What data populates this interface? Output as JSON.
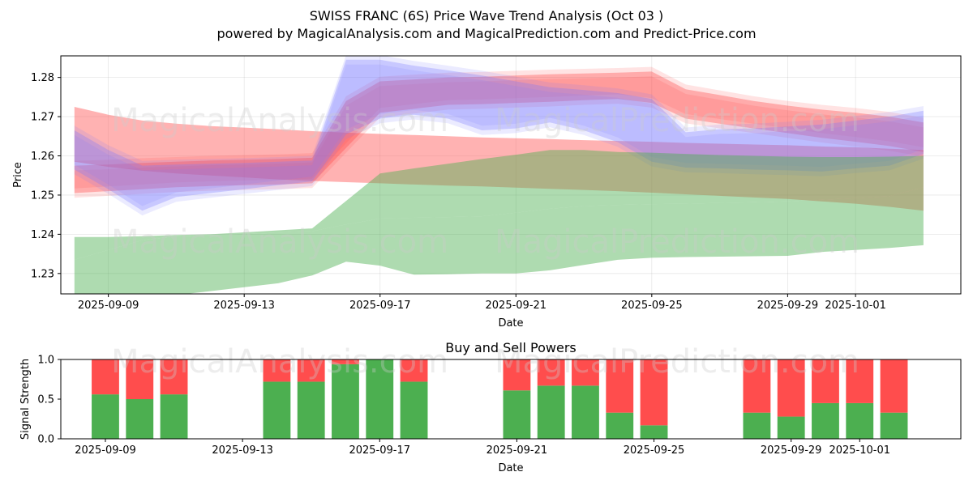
{
  "title": "SWISS FRANC (6S) Price Wave Trend Analysis (Oct 03 )",
  "subtitle": "powered by MagicalAnalysis.com and MagicalPrediction.com and Predict-Price.com",
  "watermarks": [
    "MagicalAnalysis.com",
    "MagicalPrediction.com"
  ],
  "chart_data": [
    {
      "type": "area",
      "title": "",
      "xlabel": "Date",
      "ylabel": "Price",
      "ylim": [
        1.2248,
        1.2855
      ],
      "xlim": [
        "2025-09-07.6",
        "2025-10-04.6"
      ],
      "x_ticks": [
        "2025-09-09",
        "2025-09-13",
        "2025-09-17",
        "2025-09-21",
        "2025-09-25",
        "2025-09-29",
        "2025-10-01"
      ],
      "y_ticks": [
        "1.23",
        "1.24",
        "1.25",
        "1.26",
        "1.27",
        "1.28"
      ],
      "grid": true,
      "colors": {
        "sell_band": "#ff6666",
        "buy_band": "#4caf50",
        "wave": "#7777ff"
      },
      "x_days": [
        0,
        1,
        2,
        3,
        4,
        5,
        6,
        7,
        8,
        9,
        10,
        11,
        12,
        13,
        14,
        15,
        16,
        17,
        18,
        19,
        20,
        21,
        22,
        23,
        24,
        25
      ],
      "series": [
        {
          "name": "sell band wide",
          "color": "#ff6666",
          "opacity": 0.5,
          "upper": [
            1.2725,
            1.2705,
            1.269,
            1.2682,
            1.2676,
            1.2672,
            1.2668,
            1.2663,
            1.2659,
            1.2656,
            1.2653,
            1.265,
            1.2647,
            1.2645,
            1.2643,
            1.264,
            1.2638,
            1.2636,
            1.2633,
            1.2631,
            1.2629,
            1.2627,
            1.2624,
            1.2622,
            1.2618,
            1.2615
          ],
          "lower": [
            1.2585,
            1.2572,
            1.2562,
            1.2555,
            1.255,
            1.2545,
            1.254,
            1.2536,
            1.2533,
            1.253,
            1.2527,
            1.2524,
            1.2522,
            1.2519,
            1.2516,
            1.2513,
            1.251,
            1.2506,
            1.2502,
            1.2498,
            1.2494,
            1.249,
            1.2484,
            1.2478,
            1.247,
            1.246
          ]
        },
        {
          "name": "sell wave",
          "color": "#ff4444",
          "opacity": 0.35,
          "upper": [
            1.2575,
            1.2578,
            1.2582,
            1.2585,
            1.2588,
            1.259,
            1.2592,
            1.2595,
            1.274,
            1.279,
            1.2795,
            1.28,
            1.2802,
            1.2805,
            1.2808,
            1.281,
            1.2812,
            1.2815,
            1.277,
            1.2755,
            1.274,
            1.2728,
            1.2718,
            1.271,
            1.27,
            1.2685
          ],
          "lower": [
            1.2505,
            1.251,
            1.2515,
            1.252,
            1.2523,
            1.2525,
            1.2527,
            1.253,
            1.262,
            1.271,
            1.272,
            1.273,
            1.2732,
            1.2735,
            1.2738,
            1.2742,
            1.2745,
            1.2735,
            1.2695,
            1.2682,
            1.267,
            1.2658,
            1.2646,
            1.2636,
            1.2625,
            1.261
          ]
        },
        {
          "name": "blue wave",
          "color": "#7777ff",
          "opacity": 0.3,
          "upper": [
            1.2665,
            1.2615,
            1.2575,
            1.2578,
            1.258,
            1.2582,
            1.2585,
            1.2588,
            1.2845,
            1.2845,
            1.283,
            1.2818,
            1.2805,
            1.279,
            1.2775,
            1.2768,
            1.276,
            1.2745,
            1.266,
            1.2668,
            1.267,
            1.2675,
            1.268,
            1.269,
            1.27,
            1.2715
          ],
          "lower": [
            1.2565,
            1.2515,
            1.246,
            1.2495,
            1.2505,
            1.2515,
            1.2525,
            1.2535,
            1.2655,
            1.2695,
            1.2705,
            1.2695,
            1.2665,
            1.267,
            1.2685,
            1.2665,
            1.2635,
            1.2585,
            1.257,
            1.2568,
            1.2565,
            1.2563,
            1.256,
            1.2568,
            1.2575,
            1.2605
          ]
        },
        {
          "name": "buy band upper",
          "color": "#4caf50",
          "opacity": 0.45,
          "upper": [
            1.2393,
            1.2393,
            1.2395,
            1.2398,
            1.24,
            1.2405,
            1.241,
            1.2415,
            1.2485,
            1.2555,
            1.2568,
            1.258,
            1.2592,
            1.2603,
            1.2615,
            1.2615,
            1.261,
            1.2608,
            1.2605,
            1.2602,
            1.26,
            1.2598,
            1.2597,
            1.2597,
            1.2598,
            1.26
          ],
          "lower": [
            1.2335,
            1.236,
            1.2385,
            1.2395,
            1.2398,
            1.24,
            1.2404,
            1.2408,
            1.2425,
            1.244,
            1.2442,
            1.2444,
            1.2446,
            1.2455,
            1.2465,
            1.2472,
            1.2475,
            1.2477,
            1.2478,
            1.248,
            1.2482,
            1.2484,
            1.2488,
            1.2492,
            1.2497,
            1.252
          ]
        },
        {
          "name": "buy band lower",
          "color": "#4caf50",
          "opacity": 0.45,
          "upper": [
            1.2335,
            1.236,
            1.2385,
            1.2395,
            1.2398,
            1.24,
            1.2404,
            1.2408,
            1.2425,
            1.244,
            1.2442,
            1.2444,
            1.2446,
            1.2455,
            1.2465,
            1.2472,
            1.2475,
            1.2477,
            1.2478,
            1.248,
            1.2482,
            1.2484,
            1.2488,
            1.2492,
            1.2497,
            1.252
          ],
          "lower": [
            1.2218,
            1.2225,
            1.2235,
            1.2245,
            1.2255,
            1.2265,
            1.2275,
            1.2295,
            1.233,
            1.232,
            1.2297,
            1.2298,
            1.23,
            1.23,
            1.2308,
            1.2322,
            1.2335,
            1.234,
            1.2342,
            1.2343,
            1.2344,
            1.2345,
            1.2355,
            1.236,
            1.2365,
            1.2372
          ]
        }
      ]
    },
    {
      "type": "bar",
      "title": "Buy and Sell Powers",
      "xlabel": "Date",
      "ylabel": "Signal Strength",
      "ylim": [
        0,
        1.0
      ],
      "y_ticks": [
        "0.0",
        "0.5",
        "1.0"
      ],
      "x_ticks": [
        "2025-09-09",
        "2025-09-13",
        "2025-09-17",
        "2025-09-21",
        "2025-09-25",
        "2025-09-29",
        "2025-10-01"
      ],
      "colors": {
        "buy": "#4caf50",
        "sell": "#ff4d4d"
      },
      "days": [
        0,
        1,
        2,
        5,
        6,
        7,
        8,
        9,
        12,
        13,
        14,
        15,
        16,
        19,
        20,
        21,
        22,
        23
      ],
      "buy": [
        0.56,
        0.5,
        0.56,
        0.72,
        0.72,
        0.94,
        1.0,
        0.72,
        0.61,
        0.67,
        0.67,
        0.33,
        0.17,
        0.33,
        0.28,
        0.45,
        0.45,
        0.33
      ],
      "sell": [
        0.44,
        0.5,
        0.44,
        0.28,
        0.28,
        0.06,
        0.0,
        0.28,
        0.39,
        0.33,
        0.33,
        0.67,
        0.83,
        0.67,
        0.72,
        0.55,
        0.55,
        0.67
      ]
    }
  ]
}
